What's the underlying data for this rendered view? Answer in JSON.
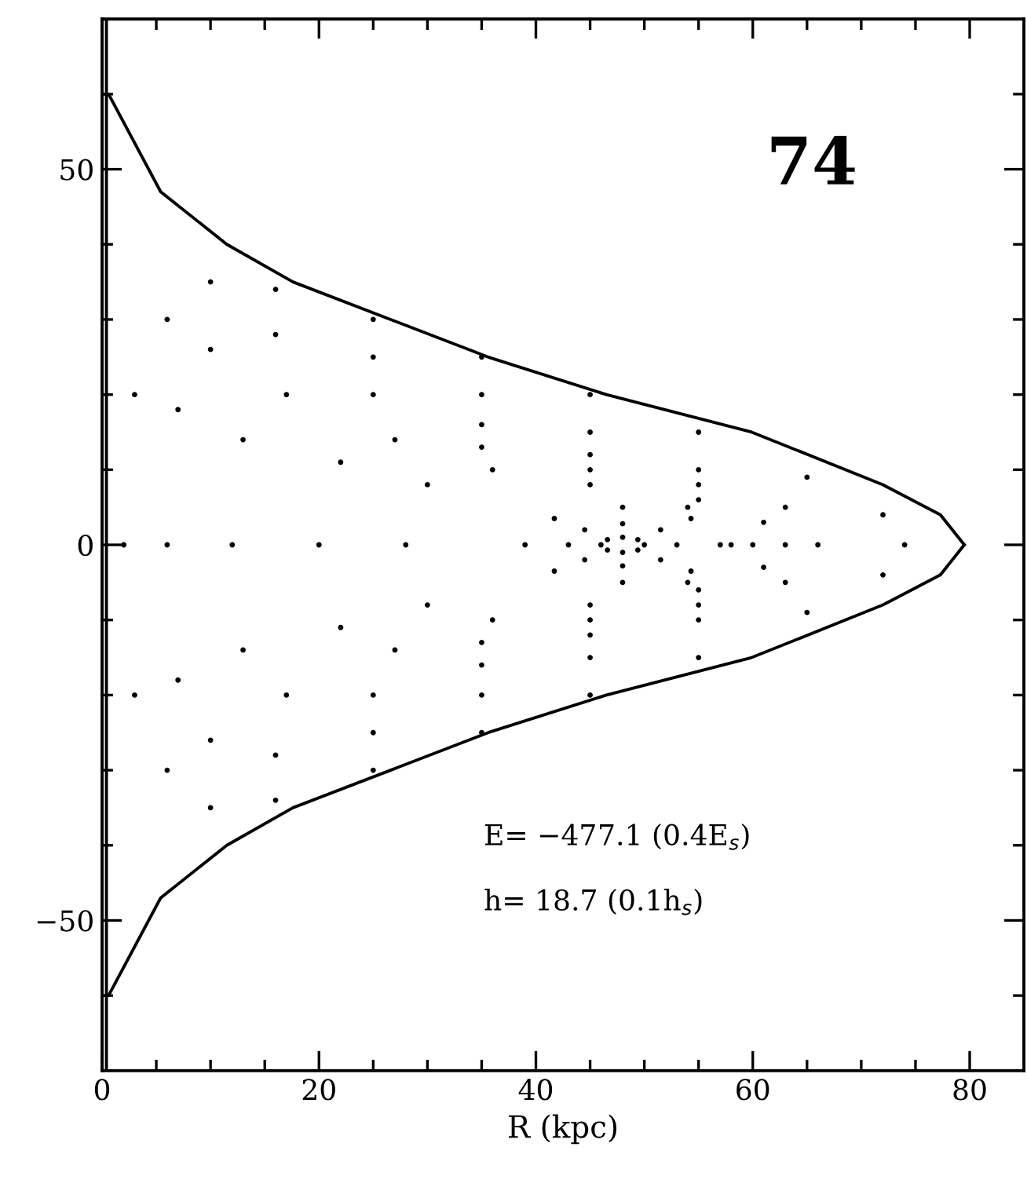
{
  "chart_data": {
    "type": "scatter",
    "xlabel": "R (kpc)",
    "xlim": [
      0,
      85
    ],
    "ylim": [
      -70,
      70
    ],
    "xticks": [
      0,
      {
        "value": 5,
        "label": null
      },
      {
        "value": 10,
        "label": null
      },
      {
        "value": 15,
        "label": null
      },
      20,
      {
        "value": 25,
        "label": null
      },
      {
        "value": 30,
        "label": null
      },
      {
        "value": 35,
        "label": null
      },
      40,
      {
        "value": 45,
        "label": null
      },
      {
        "value": 50,
        "label": null
      },
      {
        "value": 55,
        "label": null
      },
      60,
      {
        "value": 65,
        "label": null
      },
      {
        "value": 70,
        "label": null
      },
      {
        "value": 75,
        "label": null
      },
      80
    ],
    "yticks": [
      {
        "value": -60,
        "label": null
      },
      -50,
      {
        "value": -40,
        "label": null
      },
      {
        "value": -30,
        "label": null
      },
      {
        "value": -20,
        "label": null
      },
      {
        "value": -10,
        "label": null
      },
      0,
      {
        "value": 10,
        "label": null
      },
      {
        "value": 20,
        "label": null
      },
      {
        "value": 30,
        "label": null
      },
      {
        "value": 40,
        "label": null
      },
      50,
      {
        "value": 60,
        "label": null
      }
    ],
    "grid": false,
    "legend": false,
    "ref_lines": [
      {
        "axis": "x",
        "value": 0.4,
        "color": "#000000",
        "line_style": "solid"
      }
    ],
    "annotations": [
      "74",
      "E= −477.1 (0.4E$_{s}$)",
      "h= 18.7 (0.1h$_{s}$)"
    ],
    "series": [
      {
        "type": "line",
        "marker": "none",
        "color": "#000000",
        "line_style": "solid",
        "x": [
          0.3,
          0.6,
          5.4,
          11.5,
          17.6,
          26.6,
          35.6,
          46.5,
          59.9,
          72,
          77.3,
          79.5
        ],
        "values": [
          60,
          60,
          47,
          40,
          35,
          30,
          25,
          20,
          15,
          8,
          4,
          0
        ]
      },
      {
        "type": "line",
        "marker": "none",
        "color": "#000000",
        "line_style": "solid",
        "x": [
          0.3,
          0.6,
          5.4,
          11.5,
          17.6,
          26.6,
          35.6,
          46.5,
          59.9,
          72,
          77.3,
          79.5
        ],
        "values": [
          -60,
          -60,
          -47,
          -40,
          -35,
          -30,
          -25,
          -20,
          -15,
          -8,
          -4,
          0
        ]
      },
      {
        "marker": "circle",
        "color": "#000000",
        "x": [
          2,
          3,
          6,
          10,
          16,
          25,
          35,
          45,
          55,
          65,
          72,
          74,
          72,
          65,
          55,
          45,
          35,
          25,
          16,
          10,
          6,
          3
        ],
        "values": [
          0,
          20,
          30,
          35,
          34,
          30,
          25,
          20,
          15,
          9,
          4,
          0,
          -4,
          -9,
          -15,
          -20,
          -25,
          -30,
          -34,
          -35,
          -30,
          -20
        ]
      },
      {
        "marker": "circle",
        "color": "#000000",
        "x": [
          6,
          7,
          10,
          16,
          25,
          35,
          45,
          55,
          63,
          66,
          63,
          55,
          45,
          35,
          25,
          16,
          10,
          7
        ],
        "values": [
          0,
          18,
          26,
          28,
          25,
          20,
          15,
          10,
          5,
          0,
          -5,
          -10,
          -15,
          -20,
          -25,
          -28,
          -26,
          -18
        ]
      },
      {
        "marker": "circle",
        "color": "#000000",
        "x": [
          12,
          13,
          17,
          25,
          35,
          45,
          55,
          61,
          63,
          61,
          55,
          45,
          35,
          25,
          17,
          13
        ],
        "values": [
          0,
          14,
          20,
          20,
          16,
          12,
          8,
          3,
          0,
          -3,
          -8,
          -12,
          -16,
          -20,
          -20,
          -14
        ]
      },
      {
        "marker": "circle",
        "color": "#000000",
        "x": [
          20,
          22,
          27,
          35,
          45,
          55,
          60,
          55,
          45,
          35,
          27,
          22
        ],
        "values": [
          0,
          11,
          14,
          13,
          10,
          6,
          0,
          -6,
          -10,
          -13,
          -14,
          -11
        ]
      },
      {
        "marker": "circle",
        "color": "#000000",
        "x": [
          28,
          30,
          36,
          45,
          54,
          58,
          54,
          45,
          36,
          30
        ],
        "values": [
          0,
          8,
          10,
          8,
          5,
          0,
          -5,
          -8,
          -10,
          -8
        ]
      },
      {
        "marker": "circle",
        "color": "#000000",
        "x": [
          39,
          41.7,
          48,
          54.3,
          57,
          54.3,
          48,
          41.7
        ],
        "values": [
          0,
          3.5,
          5,
          3.5,
          0,
          -3.5,
          -5,
          -3.5
        ]
      },
      {
        "marker": "circle",
        "color": "#000000",
        "x": [
          43,
          44.5,
          48,
          51.5,
          53,
          51.5,
          48,
          44.5
        ],
        "values": [
          0,
          2,
          2.8,
          2,
          0,
          -2,
          -2.8,
          -2
        ]
      },
      {
        "marker": "circle",
        "color": "#000000",
        "x": [
          46,
          46.6,
          48,
          49.4,
          50,
          49.4,
          48,
          46.6
        ],
        "values": [
          0,
          0.7,
          1,
          0.7,
          0,
          -0.7,
          -1,
          -0.7
        ]
      }
    ]
  }
}
